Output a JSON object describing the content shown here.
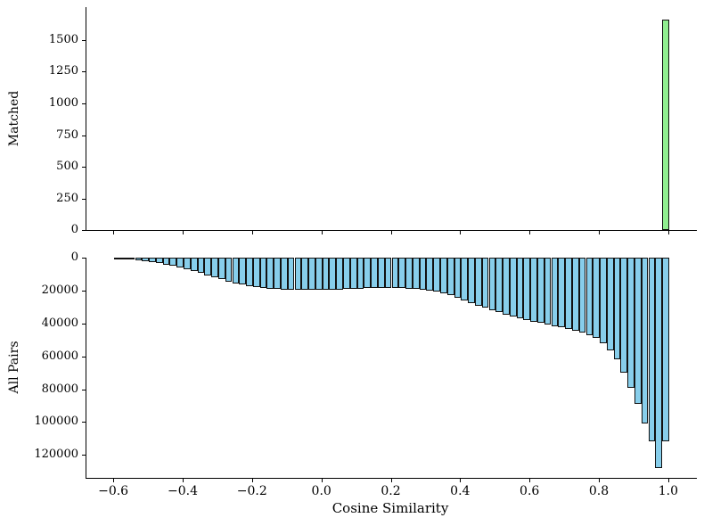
{
  "chart_data": {
    "type": "bar",
    "subtype": "stacked-histogram-panels",
    "title": "",
    "xlabel": "Cosine Similarity",
    "xlim": [
      -0.68,
      1.08
    ],
    "x_tick_values": [
      -0.6,
      -0.4,
      -0.2,
      0.0,
      0.2,
      0.4,
      0.6,
      0.8,
      1.0
    ],
    "x_tick_labels": [
      "−0.6",
      "−0.4",
      "−0.2",
      "0.0",
      "0.2",
      "0.4",
      "0.6",
      "0.8",
      "1.0"
    ],
    "bin_start": -0.6,
    "bin_width": 0.02,
    "grid": false,
    "legend": false,
    "panels": [
      {
        "name": "matched",
        "ylabel": "Matched",
        "orientation": "up",
        "bar_color": "#90ee90",
        "edge_color": "#111111",
        "ylim": [
          0,
          1760
        ],
        "y_tick_values": [
          0,
          250,
          500,
          750,
          1000,
          1250,
          1500
        ],
        "y_tick_labels": [
          "0",
          "250",
          "500",
          "750",
          "1000",
          "1250",
          "1500"
        ],
        "bars": [
          {
            "bin_left": 0.98,
            "bin_right": 1.0,
            "value": 1660
          }
        ]
      },
      {
        "name": "all_pairs",
        "ylabel": "All Pairs",
        "orientation": "down-inverted-axis",
        "bar_color": "#87ceeb",
        "edge_color": "#111111",
        "ylim": [
          0,
          134000
        ],
        "y_tick_values": [
          0,
          20000,
          40000,
          60000,
          80000,
          100000,
          120000
        ],
        "y_tick_labels": [
          "0",
          "20000",
          "40000",
          "60000",
          "80000",
          "100000",
          "120000"
        ],
        "values": [
          400,
          800,
          1300,
          1700,
          2200,
          2800,
          3400,
          4100,
          4900,
          5800,
          6900,
          8100,
          9400,
          10700,
          11900,
          13200,
          14500,
          15600,
          16400,
          17300,
          18100,
          18600,
          19000,
          19100,
          19300,
          19300,
          19500,
          19500,
          19600,
          19700,
          19700,
          19500,
          19300,
          19100,
          19000,
          18800,
          18600,
          18500,
          18400,
          18400,
          18400,
          18500,
          18700,
          19000,
          19400,
          19800,
          20600,
          21700,
          22900,
          24400,
          26000,
          27600,
          29100,
          30500,
          32000,
          33200,
          34500,
          35600,
          36700,
          37800,
          38800,
          39700,
          40600,
          41500,
          42400,
          43400,
          44500,
          45800,
          47300,
          49000,
          52000,
          56500,
          62000,
          70000,
          79000,
          89000,
          101000,
          112000,
          128000,
          111500
        ]
      }
    ]
  }
}
